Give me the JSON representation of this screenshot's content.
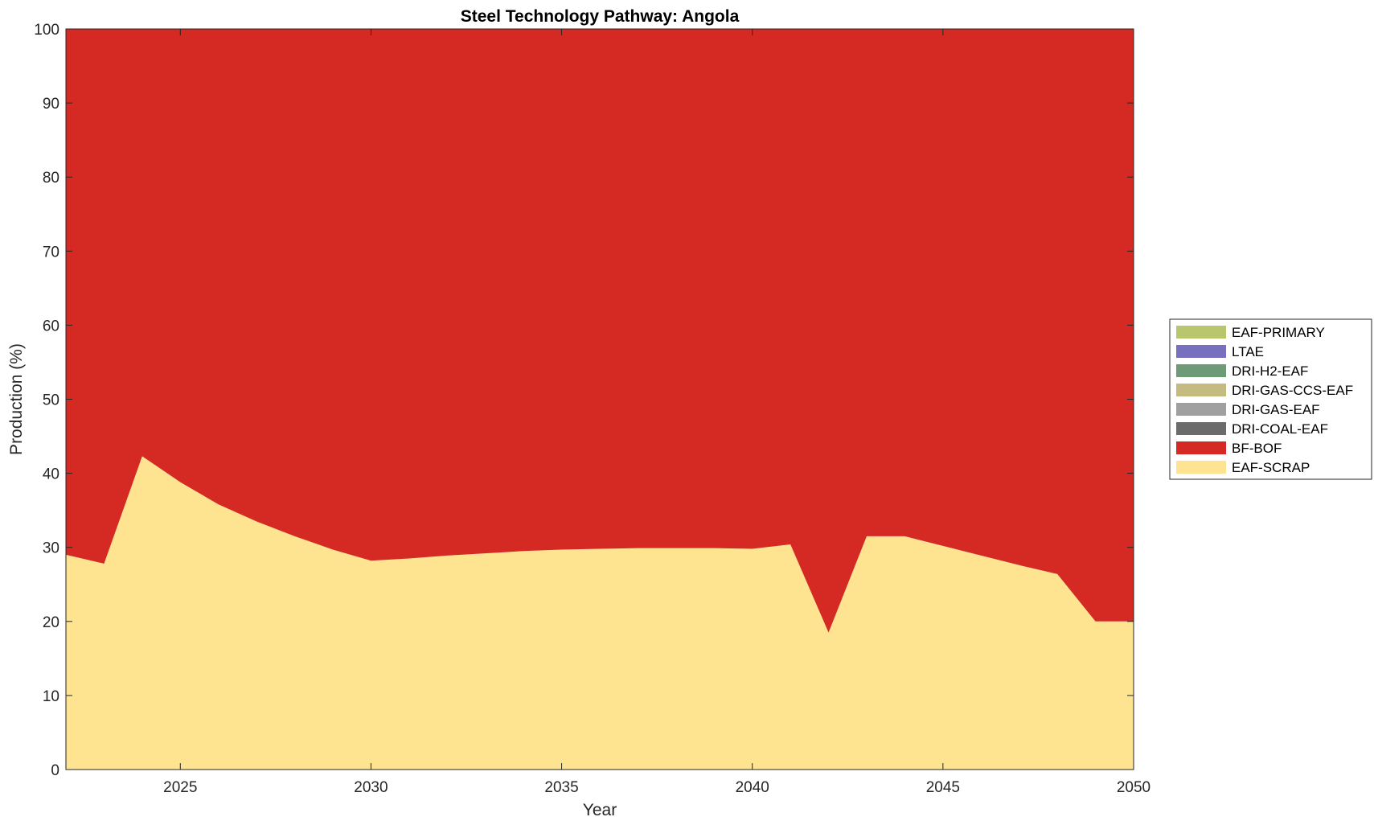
{
  "chart_data": {
    "type": "area",
    "stacked": true,
    "title": "Steel Technology Pathway: Angola",
    "xlabel": "Year",
    "ylabel": "Production (%)",
    "xlim": [
      2022,
      2050
    ],
    "ylim": [
      0,
      100
    ],
    "xticks": [
      2025,
      2030,
      2035,
      2040,
      2045,
      2050
    ],
    "yticks": [
      0,
      10,
      20,
      30,
      40,
      50,
      60,
      70,
      80,
      90,
      100
    ],
    "grid": false,
    "legend_position": "right",
    "x": [
      2022,
      2023,
      2024,
      2025,
      2026,
      2027,
      2028,
      2029,
      2030,
      2031,
      2032,
      2033,
      2034,
      2035,
      2036,
      2037,
      2038,
      2039,
      2040,
      2041,
      2042,
      2043,
      2044,
      2045,
      2046,
      2047,
      2048,
      2049,
      2050
    ],
    "series": [
      {
        "name": "EAF-SCRAP",
        "color": "#FEE391",
        "values": [
          29.0,
          27.8,
          42.3,
          38.8,
          35.8,
          33.5,
          31.5,
          29.7,
          28.2,
          28.5,
          28.9,
          29.2,
          29.5,
          29.7,
          29.8,
          29.9,
          29.9,
          29.9,
          29.8,
          30.4,
          18.5,
          31.5,
          31.5,
          30.2,
          28.9,
          27.6,
          26.4,
          20.0,
          20.0
        ]
      },
      {
        "name": "BF-BOF",
        "color": "#D42A23",
        "values": [
          71.0,
          72.2,
          57.7,
          61.2,
          64.2,
          66.5,
          68.5,
          70.3,
          71.8,
          71.5,
          71.1,
          70.8,
          70.5,
          70.3,
          70.2,
          70.1,
          70.1,
          70.1,
          70.2,
          69.6,
          81.5,
          68.5,
          68.5,
          69.8,
          71.1,
          72.4,
          73.6,
          80.0,
          80.0
        ]
      },
      {
        "name": "DRI-COAL-EAF",
        "color": "#6B6B6B",
        "values": [
          0,
          0,
          0,
          0,
          0,
          0,
          0,
          0,
          0,
          0,
          0,
          0,
          0,
          0,
          0,
          0,
          0,
          0,
          0,
          0,
          0,
          0,
          0,
          0,
          0,
          0,
          0,
          0,
          0
        ]
      },
      {
        "name": "DRI-GAS-EAF",
        "color": "#A0A0A0",
        "values": [
          0,
          0,
          0,
          0,
          0,
          0,
          0,
          0,
          0,
          0,
          0,
          0,
          0,
          0,
          0,
          0,
          0,
          0,
          0,
          0,
          0,
          0,
          0,
          0,
          0,
          0,
          0,
          0,
          0
        ]
      },
      {
        "name": "DRI-GAS-CCS-EAF",
        "color": "#C3BB7F",
        "values": [
          0,
          0,
          0,
          0,
          0,
          0,
          0,
          0,
          0,
          0,
          0,
          0,
          0,
          0,
          0,
          0,
          0,
          0,
          0,
          0,
          0,
          0,
          0,
          0,
          0,
          0,
          0,
          0,
          0
        ]
      },
      {
        "name": "DRI-H2-EAF",
        "color": "#6F9A78",
        "values": [
          0,
          0,
          0,
          0,
          0,
          0,
          0,
          0,
          0,
          0,
          0,
          0,
          0,
          0,
          0,
          0,
          0,
          0,
          0,
          0,
          0,
          0,
          0,
          0,
          0,
          0,
          0,
          0,
          0
        ]
      },
      {
        "name": "LTAE",
        "color": "#7670BF",
        "values": [
          0,
          0,
          0,
          0,
          0,
          0,
          0,
          0,
          0,
          0,
          0,
          0,
          0,
          0,
          0,
          0,
          0,
          0,
          0,
          0,
          0,
          0,
          0,
          0,
          0,
          0,
          0,
          0,
          0
        ]
      },
      {
        "name": "EAF-PRIMARY",
        "color": "#BAC66E",
        "values": [
          0,
          0,
          0,
          0,
          0,
          0,
          0,
          0,
          0,
          0,
          0,
          0,
          0,
          0,
          0,
          0,
          0,
          0,
          0,
          0,
          0,
          0,
          0,
          0,
          0,
          0,
          0,
          0,
          0
        ]
      }
    ],
    "legend_order": [
      "EAF-PRIMARY",
      "LTAE",
      "DRI-H2-EAF",
      "DRI-GAS-CCS-EAF",
      "DRI-GAS-EAF",
      "DRI-COAL-EAF",
      "BF-BOF",
      "EAF-SCRAP"
    ]
  }
}
